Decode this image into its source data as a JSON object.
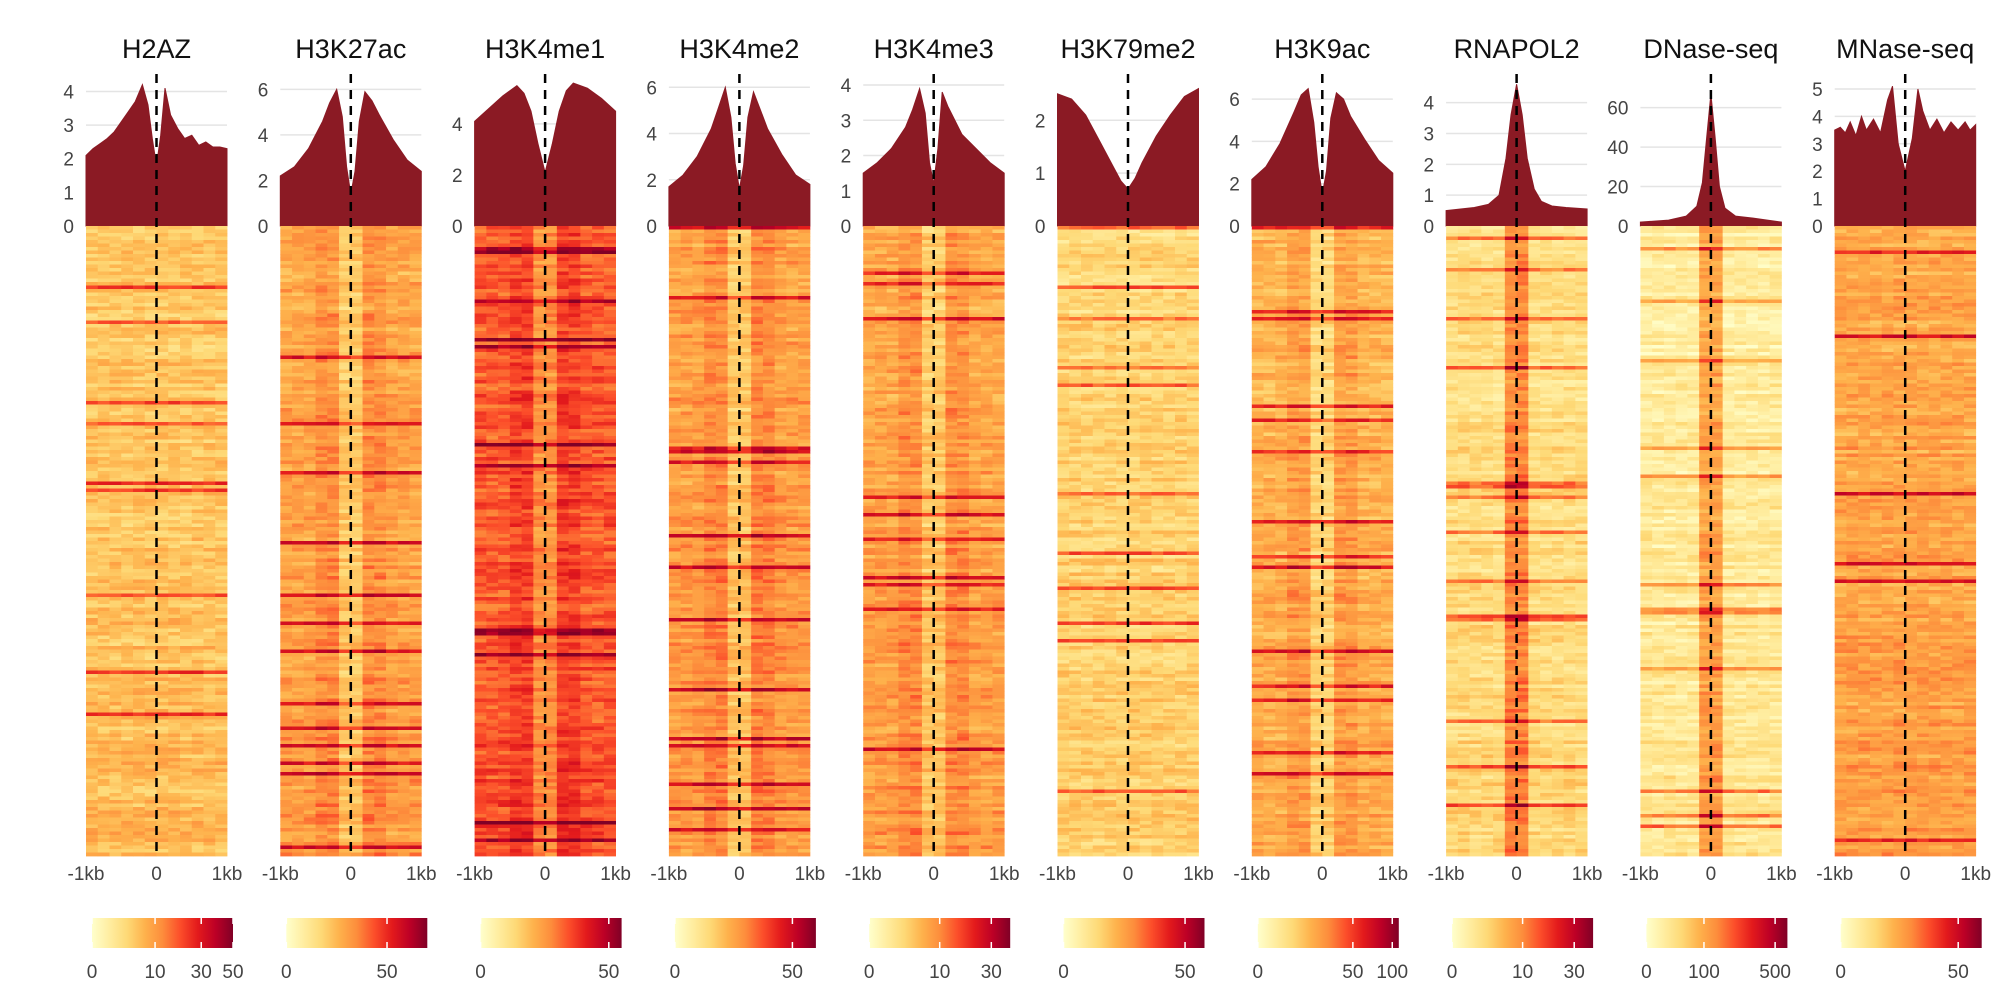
{
  "figure": {
    "x_tick_labels": [
      "-1kb",
      "0",
      "1kb"
    ]
  },
  "chart_data": [
    {
      "type": "area",
      "title": "H2AZ",
      "profile_yticks": [
        0,
        1,
        2,
        3,
        4
      ],
      "profile_ylim": [
        0,
        4.4
      ],
      "profile_x": [
        -1,
        -0.9,
        -0.8,
        -0.7,
        -0.6,
        -0.5,
        -0.4,
        -0.3,
        -0.2,
        -0.12,
        -0.06,
        0,
        0.06,
        0.12,
        0.2,
        0.3,
        0.4,
        0.5,
        0.6,
        0.7,
        0.8,
        0.9,
        1
      ],
      "profile_y": [
        2.1,
        2.3,
        2.45,
        2.6,
        2.8,
        3.1,
        3.4,
        3.7,
        4.2,
        3.6,
        2.6,
        1.8,
        2.7,
        4.1,
        3.3,
        2.9,
        2.6,
        2.7,
        2.4,
        2.5,
        2.35,
        2.35,
        2.3
      ],
      "heatmap_intensity": 0.3,
      "heatmap_center": "flat",
      "colorbar_ticks": [
        0,
        10,
        30,
        50
      ],
      "colorbar_range": [
        0,
        50
      ],
      "colorbar_scale": "sqrt"
    },
    {
      "type": "area",
      "title": "H3K27ac",
      "profile_yticks": [
        0,
        2,
        4,
        6
      ],
      "profile_ylim": [
        0,
        6.5
      ],
      "profile_x": [
        -1,
        -0.8,
        -0.6,
        -0.4,
        -0.3,
        -0.2,
        -0.12,
        -0.06,
        0,
        0.06,
        0.12,
        0.2,
        0.3,
        0.4,
        0.6,
        0.8,
        1
      ],
      "profile_y": [
        2.2,
        2.6,
        3.4,
        4.6,
        5.4,
        6.0,
        4.8,
        2.6,
        1.4,
        2.4,
        4.6,
        5.9,
        5.5,
        4.9,
        3.8,
        2.9,
        2.4
      ],
      "heatmap_intensity": 0.4,
      "heatmap_center": "dip",
      "colorbar_ticks": [
        0,
        50
      ],
      "colorbar_range": [
        0,
        70
      ],
      "colorbar_scale": "linear"
    },
    {
      "type": "area",
      "title": "H3K4me1",
      "profile_yticks": [
        0,
        2,
        4
      ],
      "profile_ylim": [
        0,
        5.8
      ],
      "profile_x": [
        -1,
        -0.8,
        -0.6,
        -0.4,
        -0.3,
        -0.2,
        -0.1,
        0,
        0.1,
        0.2,
        0.3,
        0.4,
        0.6,
        0.8,
        1
      ],
      "profile_y": [
        4.1,
        4.6,
        5.1,
        5.5,
        5.2,
        4.5,
        3.2,
        2.1,
        3.2,
        4.5,
        5.3,
        5.6,
        5.4,
        5.0,
        4.5
      ],
      "heatmap_intensity": 0.58,
      "heatmap_center": "dip",
      "colorbar_ticks": [
        0,
        50
      ],
      "colorbar_range": [
        0,
        55
      ],
      "colorbar_scale": "linear"
    },
    {
      "type": "area",
      "title": "H3K4me2",
      "profile_yticks": [
        0,
        2,
        4,
        6
      ],
      "profile_ylim": [
        0,
        6.4
      ],
      "profile_x": [
        -1,
        -0.8,
        -0.6,
        -0.4,
        -0.3,
        -0.2,
        -0.12,
        -0.06,
        0,
        0.06,
        0.12,
        0.2,
        0.3,
        0.4,
        0.6,
        0.8,
        1
      ],
      "profile_y": [
        1.7,
        2.2,
        3.0,
        4.2,
        5.1,
        6.0,
        4.7,
        2.7,
        1.6,
        2.6,
        4.7,
        5.8,
        5.0,
        4.2,
        3.1,
        2.2,
        1.8
      ],
      "heatmap_intensity": 0.42,
      "heatmap_center": "dip",
      "colorbar_ticks": [
        0,
        50
      ],
      "colorbar_range": [
        0,
        60
      ],
      "colorbar_scale": "linear"
    },
    {
      "type": "area",
      "title": "H3K4me3",
      "profile_yticks": [
        0,
        1,
        2,
        3,
        4
      ],
      "profile_ylim": [
        0,
        4.2
      ],
      "profile_x": [
        -1,
        -0.8,
        -0.6,
        -0.4,
        -0.3,
        -0.2,
        -0.12,
        -0.06,
        0,
        0.06,
        0.12,
        0.2,
        0.3,
        0.4,
        0.6,
        0.8,
        1
      ],
      "profile_y": [
        1.5,
        1.8,
        2.2,
        2.8,
        3.3,
        3.9,
        3.2,
        1.8,
        1.2,
        2.2,
        3.8,
        3.4,
        3.0,
        2.6,
        2.2,
        1.8,
        1.5
      ],
      "heatmap_intensity": 0.4,
      "heatmap_center": "dip",
      "colorbar_ticks": [
        0,
        10,
        30
      ],
      "colorbar_range": [
        0,
        40
      ],
      "colorbar_scale": "sqrt"
    },
    {
      "type": "area",
      "title": "H3K79me2",
      "profile_yticks": [
        0,
        1,
        2
      ],
      "profile_ylim": [
        0,
        2.8
      ],
      "profile_x": [
        -1,
        -0.8,
        -0.6,
        -0.4,
        -0.2,
        -0.1,
        0,
        0.1,
        0.2,
        0.4,
        0.6,
        0.8,
        1
      ],
      "profile_y": [
        2.5,
        2.4,
        2.1,
        1.6,
        1.1,
        0.85,
        0.7,
        0.9,
        1.2,
        1.7,
        2.1,
        2.45,
        2.6
      ],
      "heatmap_intensity": 0.24,
      "heatmap_center": "flat",
      "colorbar_ticks": [
        0,
        50
      ],
      "colorbar_range": [
        0,
        58
      ],
      "colorbar_scale": "linear"
    },
    {
      "type": "area",
      "title": "H3K9ac",
      "profile_yticks": [
        0,
        2,
        4,
        6
      ],
      "profile_ylim": [
        0,
        7.0
      ],
      "profile_x": [
        -1,
        -0.8,
        -0.6,
        -0.4,
        -0.3,
        -0.2,
        -0.12,
        -0.06,
        0,
        0.06,
        0.12,
        0.2,
        0.3,
        0.4,
        0.6,
        0.8,
        1
      ],
      "profile_y": [
        2.2,
        2.8,
        3.9,
        5.4,
        6.2,
        6.5,
        4.9,
        2.8,
        1.5,
        2.6,
        5.1,
        6.3,
        6.0,
        5.2,
        4.1,
        3.1,
        2.5
      ],
      "heatmap_intensity": 0.36,
      "heatmap_center": "dip",
      "colorbar_ticks": [
        0,
        50,
        100
      ],
      "colorbar_range": [
        0,
        110
      ],
      "colorbar_scale": "sqrt"
    },
    {
      "type": "area",
      "title": "RNAPOL2",
      "profile_yticks": [
        0,
        1,
        2,
        3,
        4
      ],
      "profile_ylim": [
        0,
        4.8
      ],
      "profile_x": [
        -1,
        -0.6,
        -0.4,
        -0.25,
        -0.15,
        -0.08,
        0,
        0.08,
        0.15,
        0.25,
        0.35,
        0.5,
        0.7,
        1
      ],
      "profile_y": [
        0.5,
        0.6,
        0.7,
        1.0,
        2.2,
        3.6,
        4.6,
        3.6,
        2.2,
        1.2,
        0.8,
        0.65,
        0.6,
        0.55
      ],
      "heatmap_intensity": 0.2,
      "heatmap_center": "peak",
      "colorbar_ticks": [
        0,
        10,
        30
      ],
      "colorbar_range": [
        0,
        40
      ],
      "colorbar_scale": "sqrt"
    },
    {
      "type": "area",
      "title": "DNase-seq",
      "profile_yticks": [
        0,
        20,
        40,
        60
      ],
      "profile_ylim": [
        0,
        75
      ],
      "profile_x": [
        -1,
        -0.6,
        -0.35,
        -0.2,
        -0.12,
        -0.06,
        0,
        0.06,
        0.12,
        0.2,
        0.35,
        0.6,
        0.8,
        1
      ],
      "profile_y": [
        2,
        3,
        5,
        10,
        22,
        45,
        67,
        45,
        20,
        9,
        5,
        4,
        3,
        2
      ],
      "heatmap_intensity": 0.12,
      "heatmap_center": "peak",
      "colorbar_ticks": [
        0,
        100,
        500
      ],
      "colorbar_range": [
        0,
        600
      ],
      "colorbar_scale": "sqrt"
    },
    {
      "type": "area",
      "title": "MNase-seq",
      "profile_yticks": [
        0,
        1,
        2,
        3,
        4,
        5
      ],
      "profile_ylim": [
        0,
        5.4
      ],
      "profile_x": [
        -1,
        -0.92,
        -0.85,
        -0.78,
        -0.7,
        -0.62,
        -0.55,
        -0.45,
        -0.35,
        -0.25,
        -0.18,
        -0.1,
        0,
        0.1,
        0.18,
        0.25,
        0.35,
        0.45,
        0.55,
        0.65,
        0.75,
        0.85,
        0.92,
        1
      ],
      "profile_y": [
        3.5,
        3.6,
        3.4,
        3.8,
        3.3,
        4.0,
        3.5,
        3.9,
        3.4,
        4.6,
        5.1,
        3.0,
        2.0,
        3.2,
        5.0,
        4.2,
        3.5,
        3.9,
        3.4,
        3.8,
        3.5,
        3.8,
        3.5,
        3.7
      ],
      "heatmap_intensity": 0.4,
      "heatmap_center": "flat",
      "colorbar_ticks": [
        0,
        50
      ],
      "colorbar_range": [
        0,
        60
      ],
      "colorbar_scale": "linear"
    }
  ]
}
